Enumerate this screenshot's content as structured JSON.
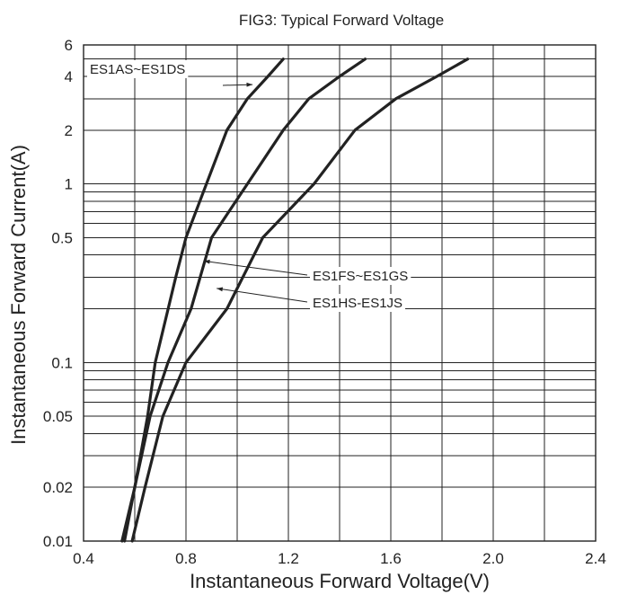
{
  "chart_data": {
    "type": "line",
    "title": "FIG3: Typical Forward Voltage",
    "xlabel": "Instantaneous Forward Voltage(V)",
    "ylabel": "Instantaneous Forward Current(A)",
    "xlim": [
      0.4,
      2.4
    ],
    "ylim": [
      0.01,
      6
    ],
    "yscale": "log",
    "grid": true,
    "x_ticks": [
      "0.4",
      "0.8",
      "1.2",
      "1.6",
      "2.0",
      "2.4"
    ],
    "x_tick_values": [
      0.4,
      0.8,
      1.2,
      1.6,
      2.0,
      2.4
    ],
    "y_ticks": [
      "0.01",
      "0.02",
      "0.05",
      "0.1",
      "0.5",
      "1",
      "2",
      "4",
      "6"
    ],
    "y_tick_values": [
      0.01,
      0.02,
      0.05,
      0.1,
      0.5,
      1,
      2,
      4,
      6
    ],
    "series": [
      {
        "name": "ES1AS~ES1DS",
        "x": [
          0.55,
          0.6,
          0.65,
          0.68,
          0.76,
          0.8,
          0.88,
          0.96,
          1.04,
          1.12,
          1.18
        ],
        "y": [
          0.01,
          0.02,
          0.05,
          0.1,
          0.3,
          0.5,
          1,
          2,
          3,
          4,
          5
        ]
      },
      {
        "name": "ES1FS~ES1GS",
        "x": [
          0.56,
          0.6,
          0.66,
          0.73,
          0.82,
          0.9,
          1.04,
          1.18,
          1.28,
          1.4,
          1.5
        ],
        "y": [
          0.01,
          0.02,
          0.05,
          0.1,
          0.2,
          0.5,
          1,
          2,
          3,
          4,
          5
        ]
      },
      {
        "name": "ES1HS-ES1JS",
        "x": [
          0.59,
          0.64,
          0.71,
          0.8,
          0.96,
          1.1,
          1.3,
          1.46,
          1.62,
          1.78,
          1.9
        ],
        "y": [
          0.01,
          0.02,
          0.05,
          0.1,
          0.2,
          0.5,
          1,
          2,
          3,
          4,
          5
        ]
      }
    ],
    "annotations": [
      {
        "text": "ES1AS~ES1DS",
        "series": 0,
        "at": [
          1.06,
          3.6
        ]
      },
      {
        "text": "ES1FS~ES1GS",
        "series": 1,
        "at": [
          0.87,
          0.37
        ]
      },
      {
        "text": "ES1HS-ES1JS",
        "series": 2,
        "at": [
          0.92,
          0.26
        ]
      }
    ]
  }
}
